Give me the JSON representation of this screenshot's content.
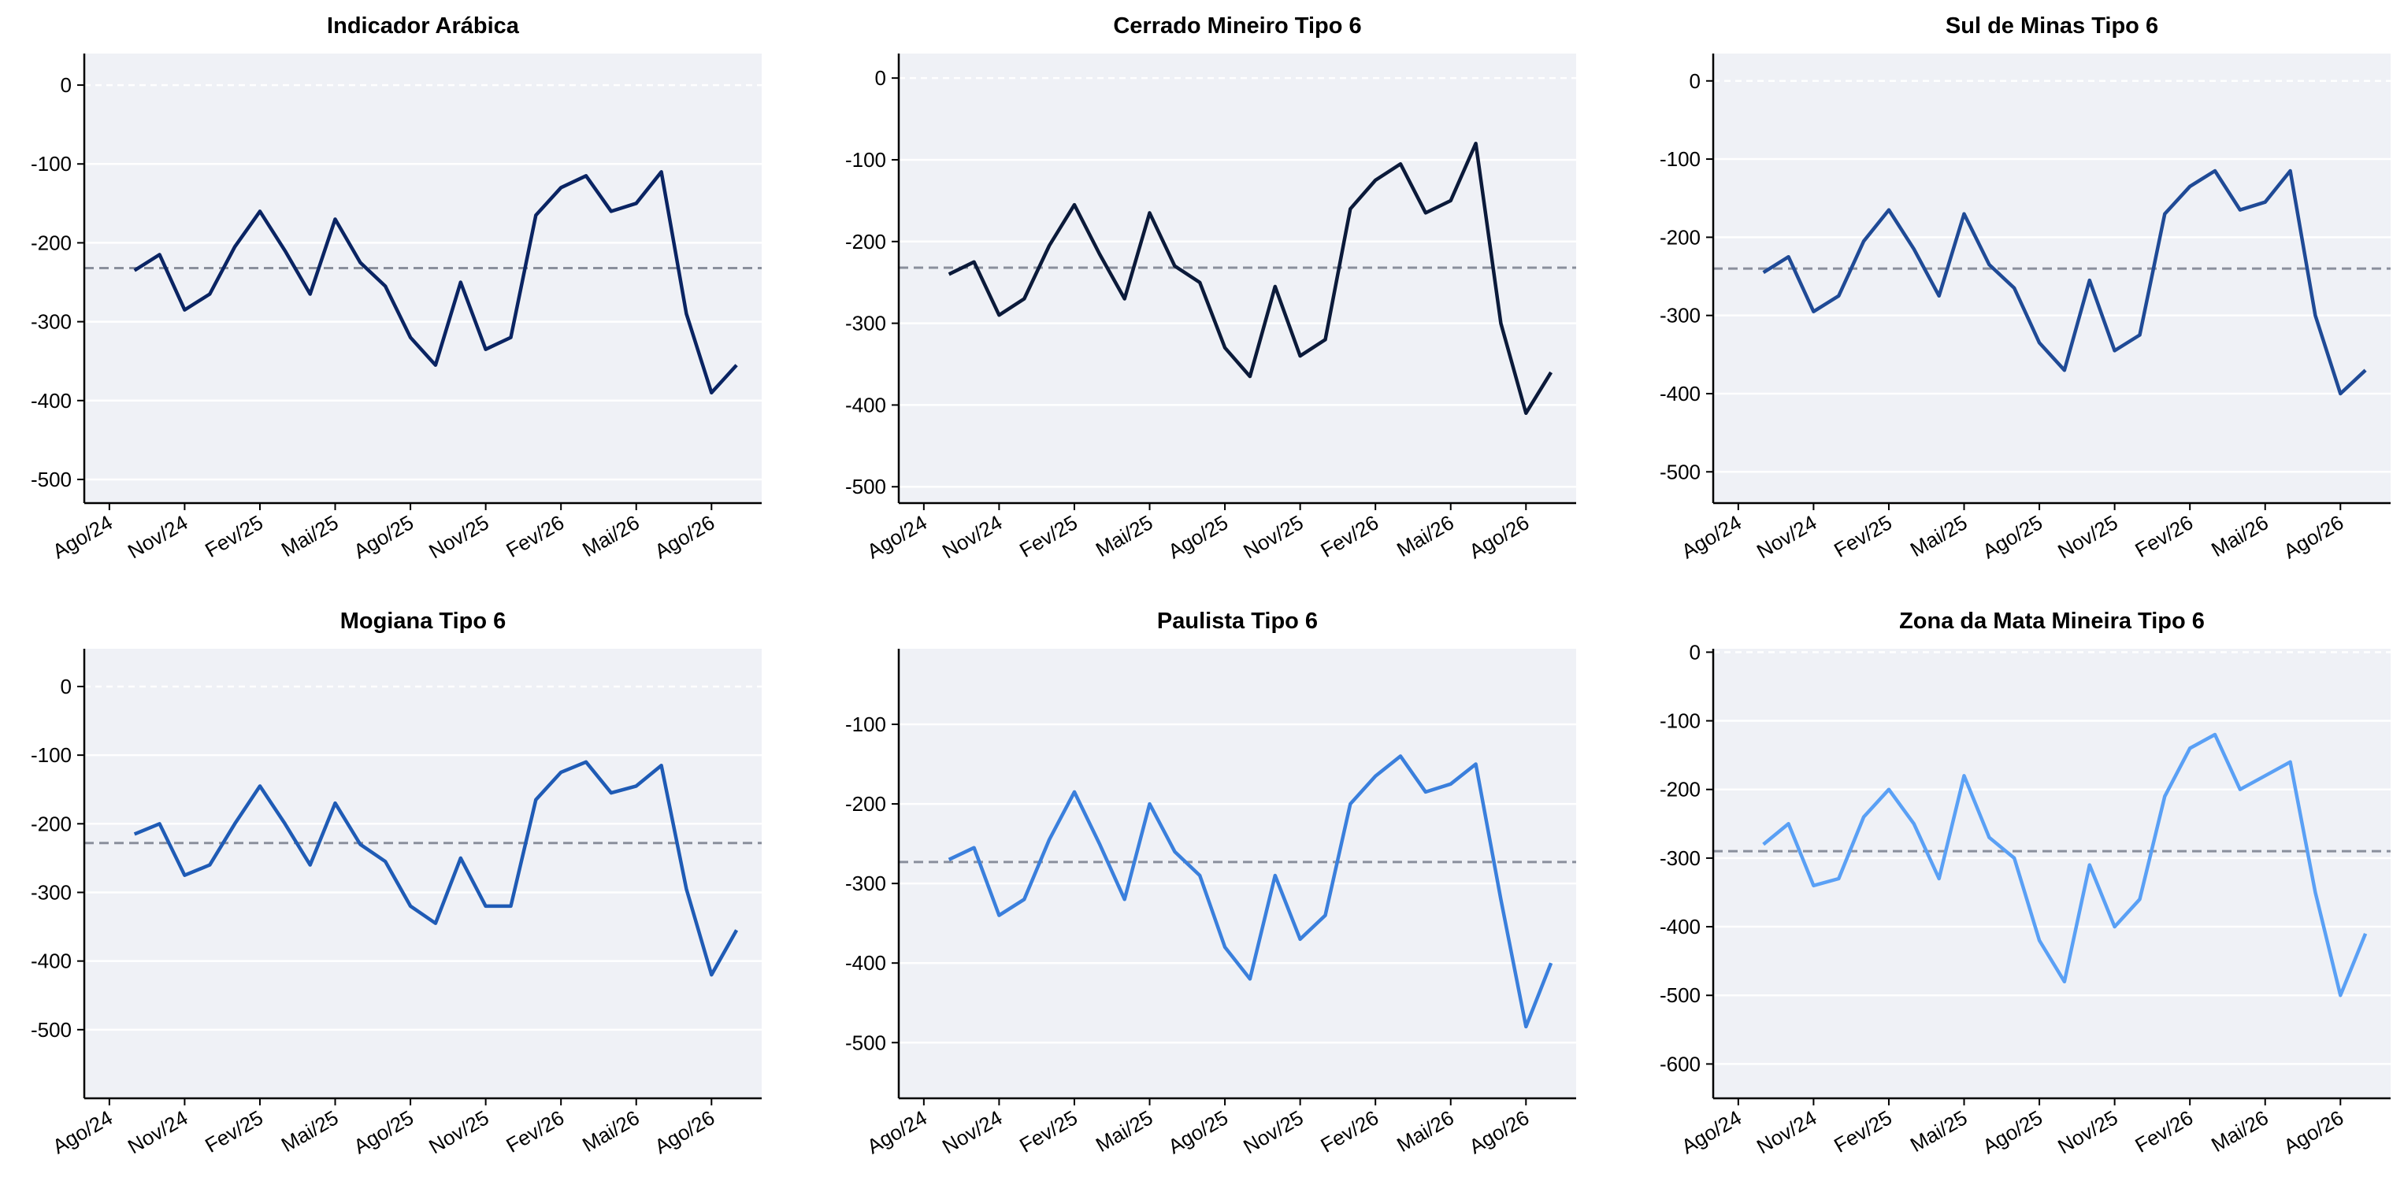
{
  "chart_data": [
    {
      "type": "line",
      "title": "Indicador Arábica",
      "color": "#0a2463",
      "mean_line": -232,
      "x": [
        "2024-09",
        "2024-10",
        "2024-11",
        "2024-12",
        "2025-01",
        "2025-02",
        "2025-03",
        "2025-04",
        "2025-05",
        "2025-06",
        "2025-07",
        "2025-08",
        "2025-09",
        "2025-10",
        "2025-11",
        "2025-12",
        "2026-01",
        "2026-02",
        "2026-03",
        "2026-04",
        "2026-05",
        "2026-06",
        "2026-07",
        "2026-08",
        "2026-09"
      ],
      "values": [
        -235,
        -215,
        -285,
        -265,
        -205,
        -160,
        -210,
        -265,
        -170,
        -225,
        -255,
        -320,
        -355,
        -250,
        -335,
        -320,
        -165,
        -130,
        -115,
        -160,
        -150,
        -110,
        -290,
        -390,
        -355
      ],
      "xlim": [
        "2024-07",
        "2026-10"
      ],
      "xticks": [
        {
          "value": "2024-08",
          "label": "Ago/24"
        },
        {
          "value": "2024-11",
          "label": "Nov/24"
        },
        {
          "value": "2025-02",
          "label": "Fev/25"
        },
        {
          "value": "2025-05",
          "label": "Mai/25"
        },
        {
          "value": "2025-08",
          "label": "Ago/25"
        },
        {
          "value": "2025-11",
          "label": "Nov/25"
        },
        {
          "value": "2026-02",
          "label": "Fev/26"
        },
        {
          "value": "2026-05",
          "label": "Mai/26"
        },
        {
          "value": "2026-08",
          "label": "Ago/26"
        }
      ],
      "ylim": [
        -530,
        40
      ],
      "yticks": [
        0,
        -100,
        -200,
        -300,
        -400,
        -500
      ],
      "grid": true
    },
    {
      "type": "line",
      "title": "Cerrado Mineiro Tipo 6",
      "color": "#0b1a3a",
      "mean_line": -232,
      "x": [
        "2024-09",
        "2024-10",
        "2024-11",
        "2024-12",
        "2025-01",
        "2025-02",
        "2025-03",
        "2025-04",
        "2025-05",
        "2025-06",
        "2025-07",
        "2025-08",
        "2025-09",
        "2025-10",
        "2025-11",
        "2025-12",
        "2026-01",
        "2026-02",
        "2026-03",
        "2026-04",
        "2026-05",
        "2026-06",
        "2026-07",
        "2026-08",
        "2026-09"
      ],
      "values": [
        -240,
        -225,
        -290,
        -270,
        -205,
        -155,
        -215,
        -270,
        -165,
        -230,
        -250,
        -330,
        -365,
        -255,
        -340,
        -320,
        -160,
        -125,
        -105,
        -165,
        -150,
        -80,
        -300,
        -410,
        -360
      ],
      "xlim": [
        "2024-07",
        "2026-10"
      ],
      "xticks": [
        {
          "value": "2024-08",
          "label": "Ago/24"
        },
        {
          "value": "2024-11",
          "label": "Nov/24"
        },
        {
          "value": "2025-02",
          "label": "Fev/25"
        },
        {
          "value": "2025-05",
          "label": "Mai/25"
        },
        {
          "value": "2025-08",
          "label": "Ago/25"
        },
        {
          "value": "2025-11",
          "label": "Nov/25"
        },
        {
          "value": "2026-02",
          "label": "Fev/26"
        },
        {
          "value": "2026-05",
          "label": "Mai/26"
        },
        {
          "value": "2026-08",
          "label": "Ago/26"
        }
      ],
      "ylim": [
        -520,
        30
      ],
      "yticks": [
        0,
        -100,
        -200,
        -300,
        -400,
        -500
      ],
      "grid": true
    },
    {
      "type": "line",
      "title": "Sul de Minas Tipo 6",
      "color": "#1f4a96",
      "mean_line": -240,
      "x": [
        "2024-09",
        "2024-10",
        "2024-11",
        "2024-12",
        "2025-01",
        "2025-02",
        "2025-03",
        "2025-04",
        "2025-05",
        "2025-06",
        "2025-07",
        "2025-08",
        "2025-09",
        "2025-10",
        "2025-11",
        "2025-12",
        "2026-01",
        "2026-02",
        "2026-03",
        "2026-04",
        "2026-05",
        "2026-06",
        "2026-07",
        "2026-08",
        "2026-09"
      ],
      "values": [
        -245,
        -225,
        -295,
        -275,
        -205,
        -165,
        -215,
        -275,
        -170,
        -235,
        -265,
        -335,
        -370,
        -255,
        -345,
        -325,
        -170,
        -135,
        -115,
        -165,
        -155,
        -115,
        -300,
        -400,
        -370
      ],
      "xlim": [
        "2024-07",
        "2026-10"
      ],
      "xticks": [
        {
          "value": "2024-08",
          "label": "Ago/24"
        },
        {
          "value": "2024-11",
          "label": "Nov/24"
        },
        {
          "value": "2025-02",
          "label": "Fev/25"
        },
        {
          "value": "2025-05",
          "label": "Mai/25"
        },
        {
          "value": "2025-08",
          "label": "Ago/25"
        },
        {
          "value": "2025-11",
          "label": "Nov/25"
        },
        {
          "value": "2026-02",
          "label": "Fev/26"
        },
        {
          "value": "2026-05",
          "label": "Mai/26"
        },
        {
          "value": "2026-08",
          "label": "Ago/26"
        }
      ],
      "ylim": [
        -540,
        35
      ],
      "yticks": [
        0,
        -100,
        -200,
        -300,
        -400,
        -500
      ],
      "grid": true
    },
    {
      "type": "line",
      "title": "Mogiana Tipo 6",
      "color": "#1f5bb5",
      "mean_line": -228,
      "x": [
        "2024-09",
        "2024-10",
        "2024-11",
        "2024-12",
        "2025-01",
        "2025-02",
        "2025-03",
        "2025-04",
        "2025-05",
        "2025-06",
        "2025-07",
        "2025-08",
        "2025-09",
        "2025-10",
        "2025-11",
        "2025-12",
        "2026-01",
        "2026-02",
        "2026-03",
        "2026-04",
        "2026-05",
        "2026-06",
        "2026-07",
        "2026-08",
        "2026-09"
      ],
      "values": [
        -215,
        -200,
        -275,
        -260,
        -200,
        -145,
        -200,
        -260,
        -170,
        -230,
        -255,
        -320,
        -345,
        -250,
        -320,
        -320,
        -165,
        -125,
        -110,
        -155,
        -145,
        -115,
        -295,
        -420,
        -355
      ],
      "xlim": [
        "2024-07",
        "2026-10"
      ],
      "xticks": [
        {
          "value": "2024-08",
          "label": "Ago/24"
        },
        {
          "value": "2024-11",
          "label": "Nov/24"
        },
        {
          "value": "2025-02",
          "label": "Fev/25"
        },
        {
          "value": "2025-05",
          "label": "Mai/25"
        },
        {
          "value": "2025-08",
          "label": "Ago/25"
        },
        {
          "value": "2025-11",
          "label": "Nov/25"
        },
        {
          "value": "2026-02",
          "label": "Fev/26"
        },
        {
          "value": "2026-05",
          "label": "Mai/26"
        },
        {
          "value": "2026-08",
          "label": "Ago/26"
        }
      ],
      "ylim": [
        -600,
        55
      ],
      "yticks": [
        0,
        -100,
        -200,
        -300,
        -400,
        -500
      ],
      "grid": true
    },
    {
      "type": "line",
      "title": "Paulista Tipo 6",
      "color": "#3a7fdc",
      "mean_line": -273,
      "x": [
        "2024-09",
        "2024-10",
        "2024-11",
        "2024-12",
        "2025-01",
        "2025-02",
        "2025-03",
        "2025-04",
        "2025-05",
        "2025-06",
        "2025-07",
        "2025-08",
        "2025-09",
        "2025-10",
        "2025-11",
        "2025-12",
        "2026-01",
        "2026-02",
        "2026-03",
        "2026-04",
        "2026-05",
        "2026-06",
        "2026-07",
        "2026-08",
        "2026-09"
      ],
      "values": [
        -270,
        -255,
        -340,
        -320,
        -245,
        -185,
        -250,
        -320,
        -200,
        -260,
        -290,
        -380,
        -420,
        -290,
        -370,
        -340,
        -200,
        -165,
        -140,
        -185,
        -175,
        -150,
        -320,
        -480,
        -400
      ],
      "xlim": [
        "2024-07",
        "2026-10"
      ],
      "xticks": [
        {
          "value": "2024-08",
          "label": "Ago/24"
        },
        {
          "value": "2024-11",
          "label": "Nov/24"
        },
        {
          "value": "2025-02",
          "label": "Fev/25"
        },
        {
          "value": "2025-05",
          "label": "Mai/25"
        },
        {
          "value": "2025-08",
          "label": "Ago/25"
        },
        {
          "value": "2025-11",
          "label": "Nov/25"
        },
        {
          "value": "2026-02",
          "label": "Fev/26"
        },
        {
          "value": "2026-05",
          "label": "Mai/26"
        },
        {
          "value": "2026-08",
          "label": "Ago/26"
        }
      ],
      "ylim": [
        -570,
        -5
      ],
      "yticks": [
        -100,
        -200,
        -300,
        -400,
        -500
      ],
      "grid": true
    },
    {
      "type": "line",
      "title": "Zona da Mata Mineira Tipo 6",
      "color": "#5aa0f5",
      "mean_line": -290,
      "x": [
        "2024-09",
        "2024-10",
        "2024-11",
        "2024-12",
        "2025-01",
        "2025-02",
        "2025-03",
        "2025-04",
        "2025-05",
        "2025-06",
        "2025-07",
        "2025-08",
        "2025-09",
        "2025-10",
        "2025-11",
        "2025-12",
        "2026-01",
        "2026-02",
        "2026-03",
        "2026-04",
        "2026-05",
        "2026-06",
        "2026-07",
        "2026-08",
        "2026-09"
      ],
      "values": [
        -280,
        -250,
        -340,
        -330,
        -240,
        -200,
        -250,
        -330,
        -180,
        -270,
        -300,
        -420,
        -480,
        -310,
        -400,
        -360,
        -210,
        -140,
        -120,
        -200,
        -180,
        -160,
        -350,
        -500,
        -410
      ],
      "xlim": [
        "2024-07",
        "2026-10"
      ],
      "xticks": [
        {
          "value": "2024-08",
          "label": "Ago/24"
        },
        {
          "value": "2024-11",
          "label": "Nov/24"
        },
        {
          "value": "2025-02",
          "label": "Fev/25"
        },
        {
          "value": "2025-05",
          "label": "Mai/25"
        },
        {
          "value": "2025-08",
          "label": "Ago/25"
        },
        {
          "value": "2025-11",
          "label": "Nov/25"
        },
        {
          "value": "2026-02",
          "label": "Fev/26"
        },
        {
          "value": "2026-05",
          "label": "Mai/26"
        },
        {
          "value": "2026-08",
          "label": "Ago/26"
        }
      ],
      "ylim": [
        -650,
        5
      ],
      "yticks": [
        0,
        -100,
        -200,
        -300,
        -400,
        -500,
        -600
      ],
      "grid": true
    }
  ]
}
